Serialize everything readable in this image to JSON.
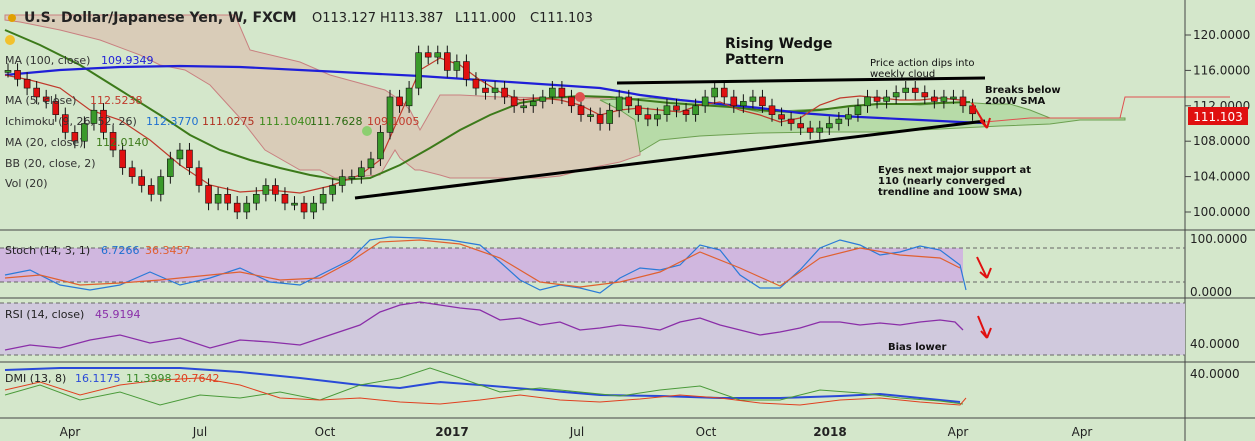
{
  "header": {
    "symbol": "U.S. Dollar/Japanese Yen, W, FXCM",
    "ohlc": [
      "O113.127",
      "H113.387",
      "L111.000",
      "C111.103"
    ]
  },
  "indicators": [
    {
      "label": "MA (100, close)",
      "values": [
        "109.9349"
      ],
      "colors": [
        "#1f1fd8"
      ]
    },
    {
      "label": "MA (5, close)",
      "values": [
        "112.5238"
      ],
      "colors": [
        "#c0392b"
      ]
    },
    {
      "label": "Ichimoku (9, 26, 52, 26)",
      "values": [
        "112.3770",
        "111.0275",
        "111.1040",
        "111.7628",
        "109.1005"
      ],
      "colors": [
        "#1e6fd0",
        "#b03020",
        "#3c8a1a",
        "#2a6a10",
        "#c0392b"
      ]
    },
    {
      "label": "MA (20, close)",
      "values": [
        "112.0140"
      ],
      "colors": [
        "#3c7a1a"
      ]
    },
    {
      "label": "BB (20, close, 2)",
      "values": [],
      "colors": []
    },
    {
      "label": "Vol (20)",
      "values": [],
      "colors": []
    }
  ],
  "price_axis": {
    "ticks": [
      "120.0000",
      "116.0000",
      "112.0000",
      "108.0000",
      "104.0000",
      "100.0000"
    ],
    "current": "111.103"
  },
  "stoch": {
    "label": "Stoch (14, 3, 1)",
    "k": "6.7266",
    "d": "36.3457",
    "ticks": [
      "100.0000",
      "0.0000"
    ]
  },
  "rsi": {
    "label": "RSI (14, close)",
    "value": "45.9194",
    "ticks": [
      "40.0000"
    ]
  },
  "dmi": {
    "label": "DMI (13, 8)",
    "values": [
      "16.1175",
      "11.3998",
      "20.7642"
    ],
    "ticks": [
      "40.0000"
    ]
  },
  "time_axis": [
    "Apr",
    "Jul",
    "Oct",
    "2017",
    "Jul",
    "Oct",
    "2018",
    "Apr"
  ],
  "time_axis_mid": "Apr",
  "annotations": {
    "wedge_title": "Rising Wedge",
    "wedge_subtitle": "Pattern",
    "cloud_1": "Price action dips into",
    "cloud_2": "weekly cloud",
    "breaks_1": "Breaks below",
    "breaks_2": "200W SMA",
    "eyes_1": "Eyes next major support at",
    "eyes_2": "110 (nearly converged",
    "eyes_3": "trendline and 100W SMA)",
    "bias": "Bias lower"
  },
  "colors": {
    "background": "#d4e7cb",
    "cloud": "#d9ccb8",
    "cloud_green": "#b7dba8",
    "bull": "#3a9a2a",
    "bear": "#e01010",
    "ma100": "#1f1fd8",
    "ma20": "#3c7a1a",
    "price_tag": "#e01010",
    "stoch_band": "#d0b7df",
    "rsi_band": "#d0c9dd"
  },
  "chart_data": {
    "type": "line",
    "title": "U.S. Dollar/Japanese Yen, W, FXCM",
    "x": [
      "2016-04",
      "2016-07",
      "2016-10",
      "2017-01",
      "2017-04",
      "2017-07",
      "2017-10",
      "2018-01"
    ],
    "series": [
      {
        "name": "MA (100, close)",
        "values": [
          114.5,
          114.2,
          113.4,
          112.9,
          112.8,
          111.5,
          110.6,
          110.0
        ]
      },
      {
        "name": "MA (20, close)",
        "values": [
          116.0,
          108.5,
          103.0,
          105.5,
          112.5,
          112.0,
          110.5,
          112.0
        ]
      }
    ],
    "ylim": [
      98,
      122
    ]
  }
}
